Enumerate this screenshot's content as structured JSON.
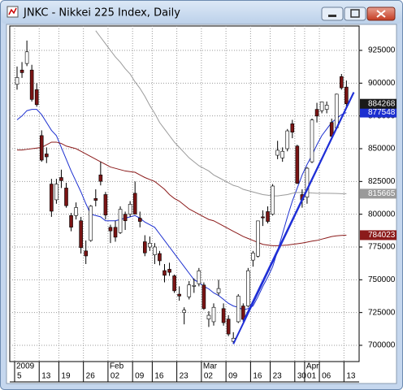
{
  "chart_data": {
    "type": "candlestick",
    "title": "JNKC - Nikkei 225 Index, Daily",
    "categories": [
      "5",
      null,
      null,
      null,
      null,
      "13",
      null,
      null,
      null,
      "19",
      null,
      null,
      null,
      null,
      "26",
      null,
      null,
      null,
      null,
      "02",
      null,
      null,
      null,
      null,
      "09",
      null,
      null,
      null,
      "16",
      null,
      null,
      null,
      null,
      "23",
      null,
      null,
      null,
      null,
      "02",
      null,
      null,
      null,
      null,
      "09",
      null,
      null,
      null,
      null,
      "16",
      null,
      null,
      null,
      "23",
      null,
      null,
      null,
      null,
      "30",
      null,
      "01",
      null,
      null,
      "06",
      null,
      null,
      null,
      null,
      "13"
    ],
    "months": [
      {
        "label": "2009",
        "start": 0
      },
      {
        "label": "Feb",
        "start": 19
      },
      {
        "label": "Mar",
        "start": 38
      },
      {
        "label": "Apr",
        "start": 59
      }
    ],
    "open": [
      899100,
      910000,
      915000,
      910000,
      895000,
      860000,
      846000,
      823000,
      811000,
      828000,
      820000,
      799000,
      799000,
      795000,
      772000,
      780000,
      812000,
      830000,
      815000,
      790000,
      790000,
      786000,
      800000,
      800000,
      816000,
      797000,
      779000,
      775000,
      769000,
      770000,
      757000,
      758000,
      753000,
      739000,
      725000,
      737000,
      745000,
      747000,
      746000,
      720000,
      718000,
      740000,
      728000,
      720000,
      703000,
      718000,
      730000,
      730000,
      765000,
      768000,
      798000,
      802000,
      800000,
      845000,
      843000,
      850000,
      869000,
      852000,
      815000,
      813000,
      840000,
      880000,
      879000,
      880000,
      870000,
      866000,
      905000,
      897000
    ],
    "high": [
      912700,
      916100,
      932500,
      914000,
      900000,
      864000,
      851000,
      827000,
      827000,
      834000,
      824000,
      801000,
      809000,
      798000,
      780000,
      807000,
      819000,
      840000,
      817000,
      792000,
      795000,
      806000,
      802000,
      810000,
      825000,
      802000,
      784000,
      783000,
      778000,
      772000,
      762000,
      763000,
      754000,
      745000,
      729000,
      749000,
      751000,
      759000,
      748000,
      726000,
      732000,
      750000,
      732000,
      723000,
      710000,
      739000,
      732000,
      759000,
      772000,
      795000,
      803000,
      806000,
      823000,
      856000,
      851000,
      865000,
      872000,
      853000,
      819000,
      836000,
      873000,
      885000,
      886000,
      886000,
      873000,
      892000,
      907000,
      902000
    ],
    "low": [
      895000,
      904000,
      913000,
      886000,
      882000,
      840000,
      839000,
      798000,
      808000,
      820000,
      805000,
      787000,
      796000,
      770000,
      762000,
      779000,
      806000,
      822000,
      796000,
      778000,
      779000,
      785000,
      788000,
      798000,
      800000,
      790000,
      768000,
      772000,
      762000,
      761000,
      748000,
      753000,
      740000,
      734000,
      716000,
      735000,
      740000,
      745000,
      727000,
      714000,
      715000,
      738000,
      715000,
      707000,
      702000,
      717000,
      719000,
      729000,
      760000,
      767000,
      791000,
      793000,
      799000,
      842000,
      840000,
      848000,
      858000,
      823000,
      805000,
      808000,
      839000,
      870000,
      877000,
      877000,
      858000,
      865000,
      895000,
      882000
    ],
    "close": [
      904300,
      908000,
      923900,
      887600,
      883600,
      841300,
      843800,
      802300,
      823000,
      825600,
      806500,
      790100,
      805100,
      774500,
      768200,
      806100,
      810600,
      825100,
      799400,
      787300,
      782500,
      803800,
      795000,
      807600,
      800100,
      794500,
      770500,
      777900,
      775000,
      764500,
      753400,
      755700,
      741600,
      737600,
      726800,
      746100,
      745700,
      756800,
      728000,
      722900,
      729000,
      743300,
      717300,
      708600,
      705400,
      737600,
      719800,
      756900,
      770400,
      794900,
      797200,
      794500,
      821500,
      848800,
      848000,
      863600,
      862600,
      823600,
      810900,
      835100,
      871900,
      874900,
      885700,
      883200,
      859500,
      891600,
      896400,
      884268
    ],
    "up_color": "#ffffff",
    "down_color": "#7a1414",
    "last_price_color": "#1a1a1a",
    "indicators": [
      {
        "color": "#1c2fd0",
        "values": [
          872000,
          875000,
          879000,
          880000,
          880000,
          876000,
          870000,
          864000,
          860000,
          851000,
          842000,
          833000,
          825000,
          817000,
          808000,
          800000,
          799000,
          798000,
          795000,
          795000,
          795000,
          796000,
          797000,
          798000,
          799000,
          797000,
          794000,
          792000,
          790000,
          785000,
          780000,
          775000,
          770000,
          765000,
          760000,
          755000,
          750000,
          748000,
          745000,
          743000,
          740000,
          738000,
          735000,
          732000,
          730000,
          729000,
          727000,
          728000,
          730000,
          737000,
          745000,
          752000,
          760000,
          772000,
          785000,
          798000,
          810000,
          820000,
          830000,
          838000,
          845000,
          853000,
          860000,
          865000,
          870000,
          873000,
          876000,
          877548
        ]
      },
      {
        "color": "#9a9a9a",
        "values": [
          null,
          null,
          null,
          null,
          null,
          null,
          null,
          null,
          null,
          null,
          null,
          null,
          null,
          null,
          null,
          null,
          940000,
          935000,
          930000,
          925000,
          920000,
          916000,
          911000,
          907000,
          901000,
          896000,
          890000,
          883000,
          877000,
          870000,
          865000,
          860000,
          855000,
          851000,
          847000,
          843000,
          840000,
          837000,
          835000,
          833000,
          830000,
          828000,
          826000,
          824000,
          822000,
          821000,
          819000,
          818000,
          817000,
          816000,
          815000,
          814500,
          814000,
          814000,
          814500,
          815000,
          816000,
          816500,
          816500,
          816500,
          816200,
          816000,
          816000,
          816000,
          815900,
          815800,
          815700,
          815665
        ]
      },
      {
        "color": "#8b1a1a",
        "values": [
          849000,
          849000,
          849500,
          850000,
          850500,
          851000,
          853000,
          855000,
          855000,
          854000,
          852000,
          851000,
          850000,
          848000,
          846000,
          844000,
          842000,
          840000,
          838000,
          836000,
          835000,
          834000,
          833000,
          832500,
          832000,
          830000,
          828000,
          826500,
          825000,
          822000,
          819000,
          815000,
          812000,
          810000,
          807000,
          804000,
          802000,
          800000,
          798000,
          796000,
          795000,
          793000,
          791000,
          789000,
          787000,
          785000,
          783000,
          781500,
          780000,
          778500,
          777000,
          776500,
          776000,
          776000,
          776200,
          776500,
          777000,
          777500,
          778000,
          778700,
          779500,
          780000,
          781000,
          782000,
          783000,
          783500,
          783800,
          784023
        ]
      }
    ],
    "trendlines": [
      {
        "color": "#1f2fd6",
        "x": [
          44,
          68.5
        ],
        "y": [
          701000,
          893000
        ]
      },
      {
        "color": "#1f2fd6",
        "x": [
          46,
          68.5
        ],
        "y": [
          718000,
          893000
        ]
      }
    ],
    "ylim": [
      687600,
      943600
    ],
    "yticks": [
      700000,
      725000,
      750000,
      775000,
      800000,
      825000,
      850000,
      875000,
      900000,
      925000
    ],
    "grid": true
  }
}
